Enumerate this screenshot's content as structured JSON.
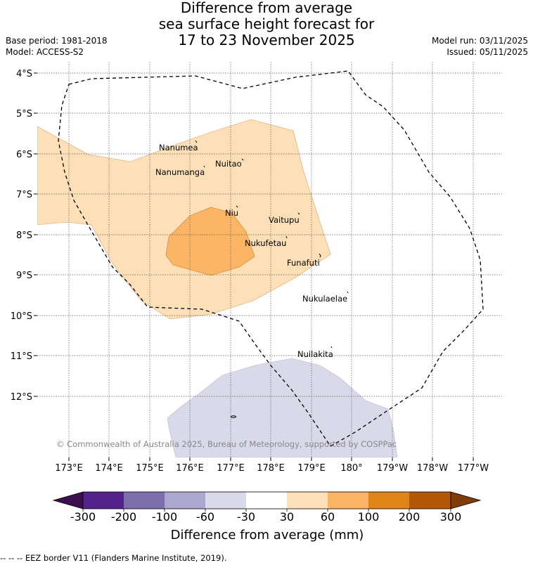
{
  "header": {
    "title_lines": [
      "Difference from average",
      "sea surface height forecast for",
      "17 to 23 November 2025"
    ],
    "base_period": "Base period: 1981-2018",
    "model": "Model: ACCESS-S2",
    "model_run": "Model run: 03/11/2025",
    "issued": "Issued: 05/11/2025"
  },
  "map": {
    "lat_labels": [
      "4°S",
      "5°S",
      "6°S",
      "7°S",
      "8°S",
      "9°S",
      "10°S",
      "11°S",
      "12°S"
    ],
    "lon_labels": [
      "173°E",
      "174°E",
      "175°E",
      "176°E",
      "177°E",
      "178°E",
      "179°E",
      "180°",
      "179°W",
      "178°W",
      "177°W"
    ],
    "islands": [
      {
        "name": "Nanumea"
      },
      {
        "name": "Nuitao"
      },
      {
        "name": "Nanumanga"
      },
      {
        "name": "Niu"
      },
      {
        "name": "Vaitupu"
      },
      {
        "name": "Nukufetau"
      },
      {
        "name": "Funafuti"
      },
      {
        "name": "Nukulaelae"
      },
      {
        "name": "Nuilakita"
      }
    ],
    "copyright": "© Commonwealth of Australia 2025, Bureau of Meteorology, supported by COSPPac"
  },
  "colorbar": {
    "colors": [
      "#3b0f4f",
      "#54238c",
      "#7d6fac",
      "#aca7cf",
      "#d9d9ea",
      "#ffffff",
      "#fde0b7",
      "#fbb564",
      "#e08418",
      "#b35806",
      "#7f3b08"
    ],
    "tick_labels": [
      "-300",
      "-200",
      "-100",
      "-60",
      "-30",
      "30",
      "60",
      "100",
      "200",
      "300"
    ],
    "label": "Difference from average (mm)"
  },
  "footer": {
    "eez_legend": "--  --  -- EEZ border V11 (Flanders Marine Institute, 2019)."
  }
}
